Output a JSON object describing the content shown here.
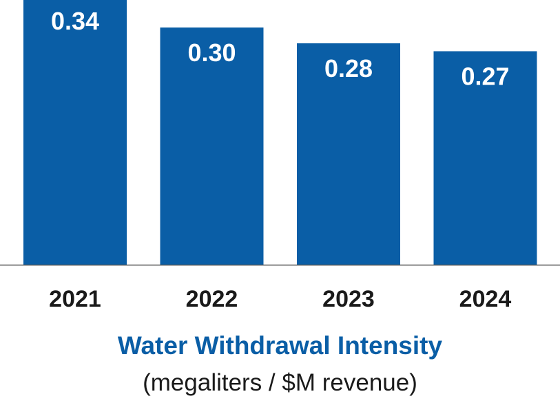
{
  "chart_data": {
    "type": "bar",
    "title": "Water Withdrawal Intensity",
    "subtitle": "(megaliters / $M revenue)",
    "categories": [
      "2021",
      "2022",
      "2023",
      "2024"
    ],
    "values": [
      0.34,
      0.3,
      0.28,
      0.27
    ],
    "value_labels": [
      "0.34",
      "0.30",
      "0.28",
      "0.27"
    ],
    "xlabel": "",
    "ylabel": "",
    "ylim": [
      0,
      0.34
    ],
    "grid": false,
    "legend": "none",
    "colors": {
      "bar": "#0a5ea6",
      "title": "#0a5ea6",
      "axis": "#555555",
      "text": "#1a1a1a",
      "value_text": "#ffffff"
    }
  }
}
